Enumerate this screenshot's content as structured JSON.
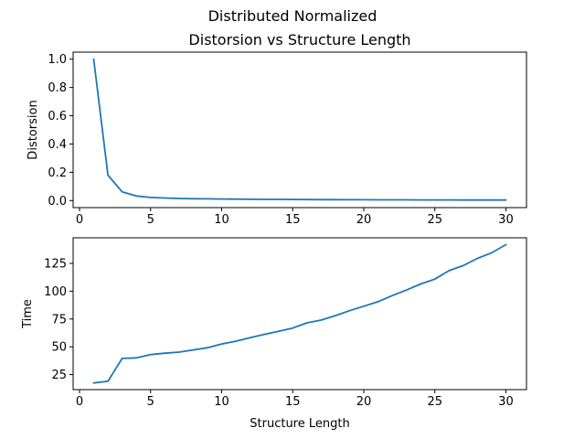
{
  "figure": {
    "suptitle": "Distributed Normalized"
  },
  "chart_data": [
    {
      "type": "line",
      "title": "Distorsion vs Structure Length",
      "xlabel": "",
      "ylabel": "Distorsion",
      "xlim": [
        -0.45,
        31.45
      ],
      "ylim": [
        -0.05,
        1.05
      ],
      "xticks": [
        0,
        5,
        10,
        15,
        20,
        25,
        30
      ],
      "yticks": [
        0.0,
        0.2,
        0.4,
        0.6,
        0.8,
        1.0
      ],
      "ytick_labels": [
        "0.0",
        "0.2",
        "0.4",
        "0.6",
        "0.8",
        "1.0"
      ],
      "color": "#1f77b4",
      "series": [
        {
          "x": [
            1,
            2,
            3,
            4,
            5,
            6,
            7,
            8,
            9,
            10,
            11,
            12,
            13,
            14,
            15,
            16,
            17,
            18,
            19,
            20,
            21,
            22,
            23,
            24,
            25,
            26,
            27,
            28,
            29,
            30
          ],
          "y": [
            1.0,
            0.18,
            0.062,
            0.032,
            0.022,
            0.018,
            0.015,
            0.013,
            0.012,
            0.011,
            0.01,
            0.009,
            0.0085,
            0.008,
            0.0075,
            0.007,
            0.0065,
            0.006,
            0.0058,
            0.0055,
            0.0052,
            0.005,
            0.0048,
            0.0046,
            0.0044,
            0.0042,
            0.004,
            0.0038,
            0.0036,
            0.0035
          ]
        }
      ]
    },
    {
      "type": "line",
      "title": "",
      "xlabel": "Structure Length",
      "ylabel": "Time",
      "xlim": [
        -0.45,
        31.45
      ],
      "ylim": [
        11.5,
        148.0
      ],
      "xticks": [
        0,
        5,
        10,
        15,
        20,
        25,
        30
      ],
      "yticks": [
        25,
        50,
        75,
        100,
        125
      ],
      "ytick_labels": [
        "25",
        "50",
        "75",
        "100",
        "125"
      ],
      "color": "#1f77b4",
      "series": [
        {
          "x": [
            1,
            2,
            3,
            4,
            5,
            6,
            7,
            8,
            9,
            10,
            11,
            12,
            13,
            14,
            15,
            16,
            17,
            18,
            19,
            20,
            21,
            22,
            23,
            24,
            25,
            26,
            27,
            28,
            29,
            30
          ],
          "y": [
            17.5,
            19,
            39.5,
            40,
            43,
            44.2,
            45.2,
            47.2,
            49.2,
            52.5,
            55,
            58.2,
            61.2,
            64,
            66.8,
            71.5,
            74,
            78,
            82.5,
            86.5,
            90.5,
            96,
            101,
            106.5,
            110.8,
            118.5,
            123,
            129.5,
            134.5,
            141.8
          ]
        }
      ]
    }
  ]
}
